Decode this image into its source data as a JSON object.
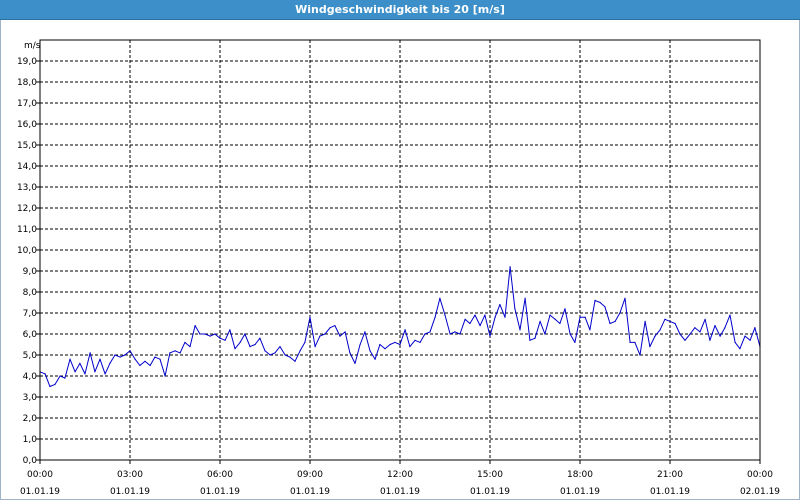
{
  "window": {
    "title": "Windgeschwindigkeit bis 20 [m/s]"
  },
  "chart_data": {
    "type": "line",
    "title": "Windgeschwindigkeit bis 20 [m/s]",
    "ylabel": "m/s",
    "xlabel": "",
    "ylim": [
      0,
      20
    ],
    "xlim": [
      0,
      24
    ],
    "grid": true,
    "yticks": [
      "0,0",
      "1,0",
      "2,0",
      "3,0",
      "4,0",
      "5,0",
      "6,0",
      "7,0",
      "8,0",
      "9,0",
      "10,0",
      "11,0",
      "12,0",
      "13,0",
      "14,0",
      "15,0",
      "16,0",
      "17,0",
      "18,0",
      "19,0"
    ],
    "xticks": [
      {
        "time": "00:00",
        "date": "01.01.19"
      },
      {
        "time": "03:00",
        "date": "01.01.19"
      },
      {
        "time": "06:00",
        "date": "01.01.19"
      },
      {
        "time": "09:00",
        "date": "01.01.19"
      },
      {
        "time": "12:00",
        "date": "01.01.19"
      },
      {
        "time": "15:00",
        "date": "01.01.19"
      },
      {
        "time": "18:00",
        "date": "01.01.19"
      },
      {
        "time": "21:00",
        "date": "01.01.19"
      },
      {
        "time": "00:00",
        "date": "02.01.19"
      }
    ],
    "line_color": "#0000cc",
    "series": [
      {
        "x": [
          0,
          0.17,
          0.33,
          0.5,
          0.67,
          0.83,
          1,
          1.17,
          1.33,
          1.5,
          1.67,
          1.83,
          2,
          2.17,
          2.33,
          2.5,
          2.67,
          2.83,
          3,
          3.17,
          3.33,
          3.5,
          3.67,
          3.83,
          4,
          4.17,
          4.33,
          4.5,
          4.67,
          4.83,
          5,
          5.17,
          5.33,
          5.5,
          5.67,
          5.83,
          6,
          6.17,
          6.33,
          6.5,
          6.67,
          6.83,
          7,
          7.17,
          7.33,
          7.5,
          7.67,
          7.83,
          8,
          8.17,
          8.33,
          8.5,
          8.67,
          8.83,
          9,
          9.17,
          9.33,
          9.5,
          9.67,
          9.83,
          10,
          10.17,
          10.33,
          10.5,
          10.67,
          10.83,
          11,
          11.17,
          11.33,
          11.5,
          11.67,
          11.83,
          12,
          12.17,
          12.33,
          12.5,
          12.67,
          12.83,
          13,
          13.17,
          13.33,
          13.5,
          13.67,
          13.83,
          14,
          14.17,
          14.33,
          14.5,
          14.67,
          14.83,
          15,
          15.17,
          15.33,
          15.5,
          15.67,
          15.83,
          16,
          16.17,
          16.33,
          16.5,
          16.67,
          16.83,
          17,
          17.17,
          17.33,
          17.5,
          17.67,
          17.83,
          18,
          18.17,
          18.33,
          18.5,
          18.67,
          18.83,
          19,
          19.17,
          19.33,
          19.5,
          19.67,
          19.83,
          20,
          20.17,
          20.33,
          20.5,
          20.67,
          20.83,
          21,
          21.17,
          21.33,
          21.5,
          21.67,
          21.83,
          22,
          22.17,
          22.33,
          22.5,
          22.67,
          22.83,
          23,
          23.17,
          23.33,
          23.5,
          23.67,
          23.83,
          24
        ],
        "values": [
          4.2,
          4.1,
          3.5,
          3.6,
          4.0,
          3.9,
          4.8,
          4.2,
          4.6,
          4.1,
          5.1,
          4.2,
          4.8,
          4.1,
          4.6,
          5.0,
          4.9,
          5.0,
          5.2,
          4.8,
          4.5,
          4.7,
          4.5,
          4.9,
          4.8,
          4.0,
          5.1,
          5.2,
          5.1,
          5.6,
          5.4,
          6.4,
          6.0,
          6.0,
          5.9,
          6.0,
          5.8,
          5.7,
          6.2,
          5.3,
          5.6,
          6.0,
          5.4,
          5.5,
          5.8,
          5.2,
          5.0,
          5.1,
          5.4,
          5.0,
          4.9,
          4.7,
          5.2,
          5.6,
          6.8,
          5.4,
          5.9,
          6.0,
          6.3,
          6.4,
          5.9,
          6.1,
          5.1,
          4.6,
          5.5,
          6.1,
          5.2,
          4.8,
          5.5,
          5.3,
          5.5,
          5.6,
          5.5,
          6.2,
          5.4,
          5.7,
          5.6,
          6.0,
          6.1,
          6.8,
          7.7,
          6.9,
          6.0,
          6.1,
          6.0,
          6.7,
          6.5,
          6.9,
          6.4,
          6.9,
          5.9,
          6.8,
          7.4,
          6.8,
          9.2,
          7.2,
          6.2,
          7.7,
          5.7,
          5.8,
          6.6,
          6.0,
          6.9,
          6.7,
          6.5,
          7.2,
          6.0,
          5.6,
          6.8,
          6.8,
          6.2,
          7.6,
          7.5,
          7.3,
          6.5,
          6.6,
          7.0,
          7.7,
          5.6,
          5.6,
          5.0,
          6.6,
          5.4,
          5.9,
          6.2,
          6.7,
          6.6,
          6.5,
          6.0,
          5.7,
          6.0,
          6.3,
          6.1,
          6.7,
          5.7,
          6.4,
          5.9,
          6.3,
          6.9,
          5.6,
          5.3,
          5.9,
          5.7,
          6.3,
          5.4
        ]
      }
    ]
  }
}
